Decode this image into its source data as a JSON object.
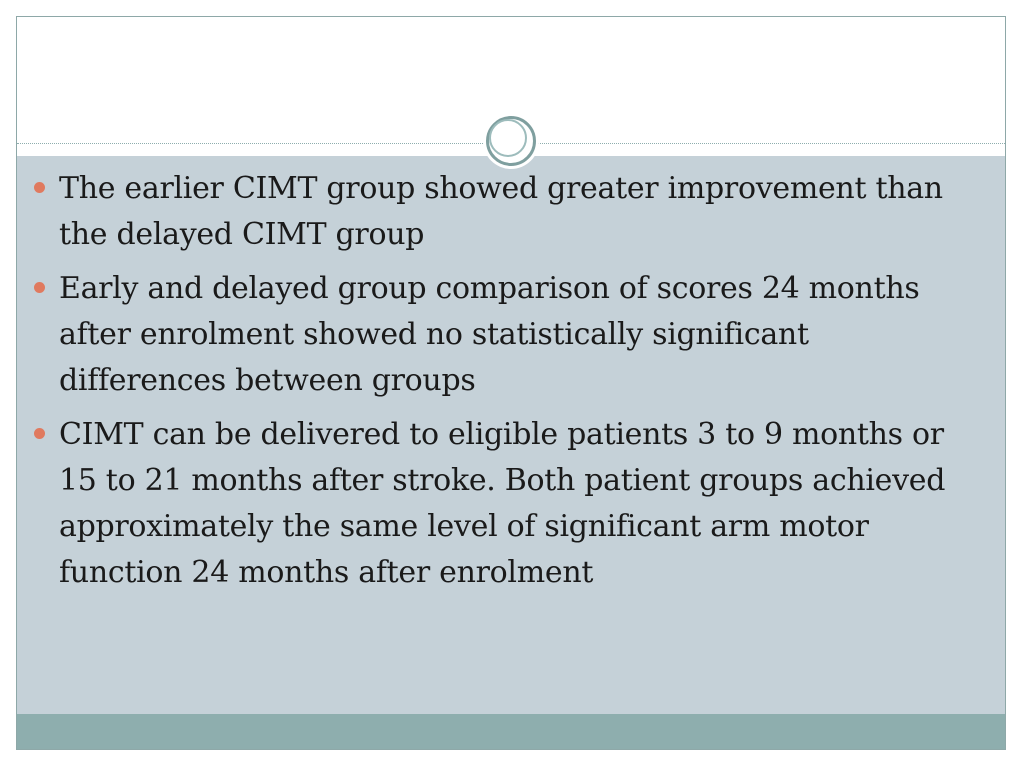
{
  "slide": {
    "bullets": [
      {
        "text": "The earlier CIMT group showed greater improvement than the delayed CIMT group"
      },
      {
        "text": "Early and delayed group comparison of scores 24 months after enrolment showed no statistically significant differences between groups"
      },
      {
        "text": "CIMT can be delivered to eligible patients 3 to 9 months or 15 to 21 months after stroke. Both patient groups achieved approximately the same level of significant arm motor function 24 months after enrolment"
      }
    ]
  },
  "colors": {
    "content_background": "#c5d1d8",
    "footer_bar": "#8eaeae",
    "bullet_accent": "#e07a5f",
    "ornament_ring": "#7f9f9f"
  }
}
